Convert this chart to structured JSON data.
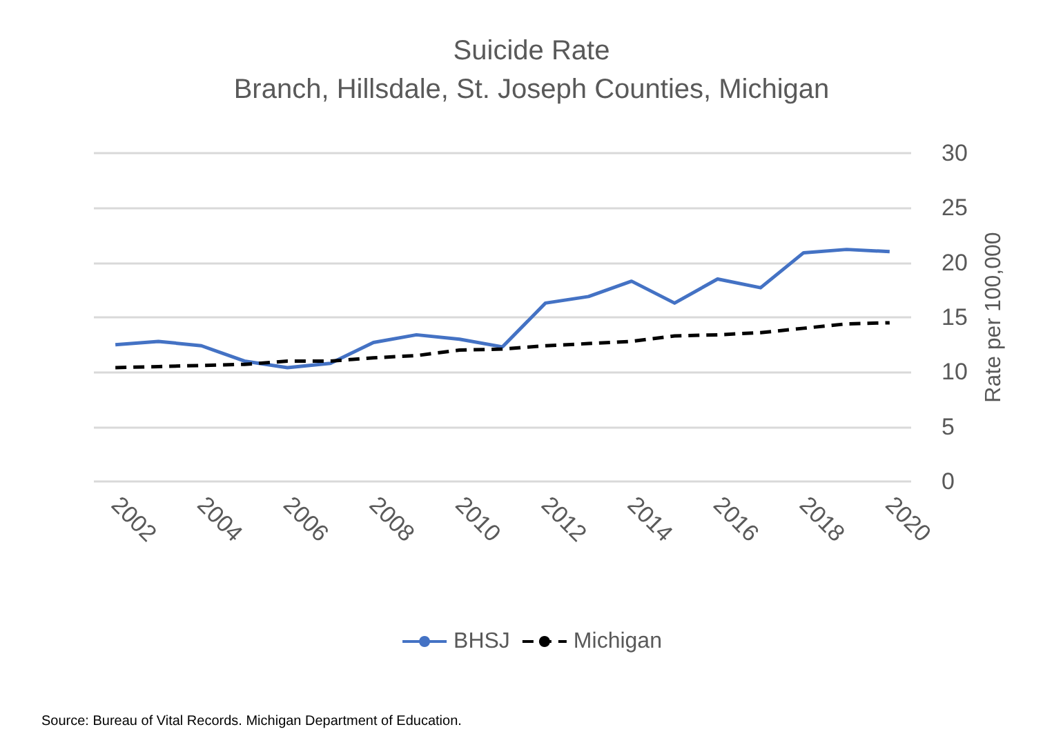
{
  "chart_data": {
    "type": "line",
    "title": "Suicide Rate",
    "subtitle": "Branch, Hillsdale, St. Joseph Counties, Michigan",
    "ylabel": "Rate per 100,000",
    "categories": [
      "2002",
      null,
      "2004",
      null,
      "2006",
      null,
      "2008",
      null,
      "2010",
      null,
      "2012",
      null,
      "2014",
      null,
      "2016",
      null,
      "2018",
      null,
      "2020"
    ],
    "series": [
      {
        "name": "BHSJ",
        "color": "#4472c4",
        "line_style": "solid",
        "values": [
          12.5,
          12.8,
          12.4,
          11.0,
          10.4,
          10.8,
          12.7,
          13.4,
          13.0,
          12.3,
          16.3,
          16.9,
          18.3,
          16.3,
          18.5,
          17.7,
          20.9,
          21.2,
          21.0
        ]
      },
      {
        "name": "Michigan",
        "color": "#000000",
        "line_style": "dashed",
        "values": [
          10.4,
          10.5,
          10.6,
          10.7,
          11.0,
          11.0,
          11.3,
          11.5,
          12.0,
          12.1,
          12.4,
          12.6,
          12.8,
          13.3,
          13.4,
          13.6,
          14.0,
          14.4,
          14.5
        ]
      }
    ],
    "ylim": [
      0,
      30
    ],
    "yticks": [
      0,
      5,
      10,
      15,
      20,
      25,
      30
    ],
    "grid": "y",
    "legend": "bottom",
    "marker": "none",
    "annotations": [
      "Source: Bureau of Vital Records. Michigan Department of Education."
    ]
  }
}
